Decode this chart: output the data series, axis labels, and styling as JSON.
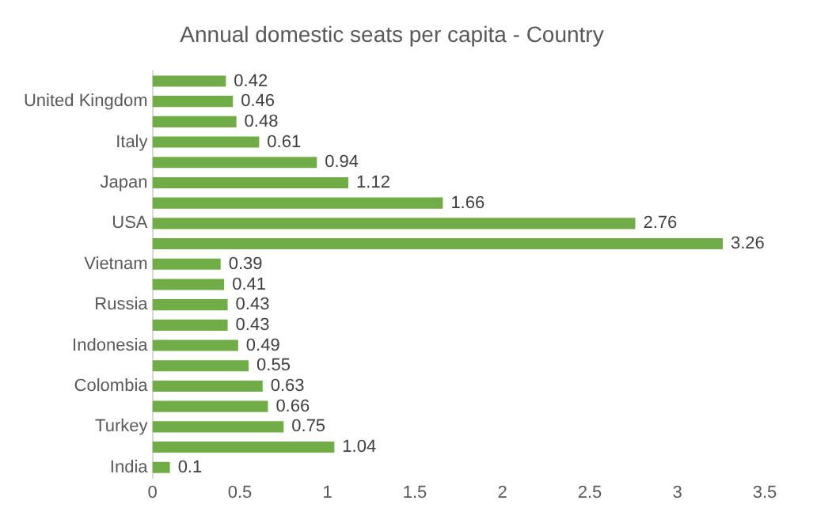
{
  "chart_data": {
    "type": "bar",
    "orientation": "horizontal",
    "title": "Annual domestic seats per capita - Country",
    "categories": [
      null,
      "United Kingdom",
      null,
      "Italy",
      null,
      "Japan",
      null,
      "USA",
      null,
      "Vietnam",
      null,
      "Russia",
      null,
      "Indonesia",
      null,
      "Colombia",
      null,
      "Turkey",
      null,
      "India"
    ],
    "values": [
      0.42,
      0.46,
      0.48,
      0.61,
      0.94,
      1.12,
      1.66,
      2.76,
      3.26,
      0.39,
      0.41,
      0.43,
      0.43,
      0.49,
      0.55,
      0.63,
      0.66,
      0.75,
      1.04,
      0.1
    ],
    "color": "#70ad47",
    "xlim": [
      0,
      3.5
    ],
    "xticks": [
      0,
      0.5,
      1,
      1.5,
      2,
      2.5,
      3,
      3.5
    ],
    "grid": false,
    "legend": false,
    "data_labels": true
  }
}
